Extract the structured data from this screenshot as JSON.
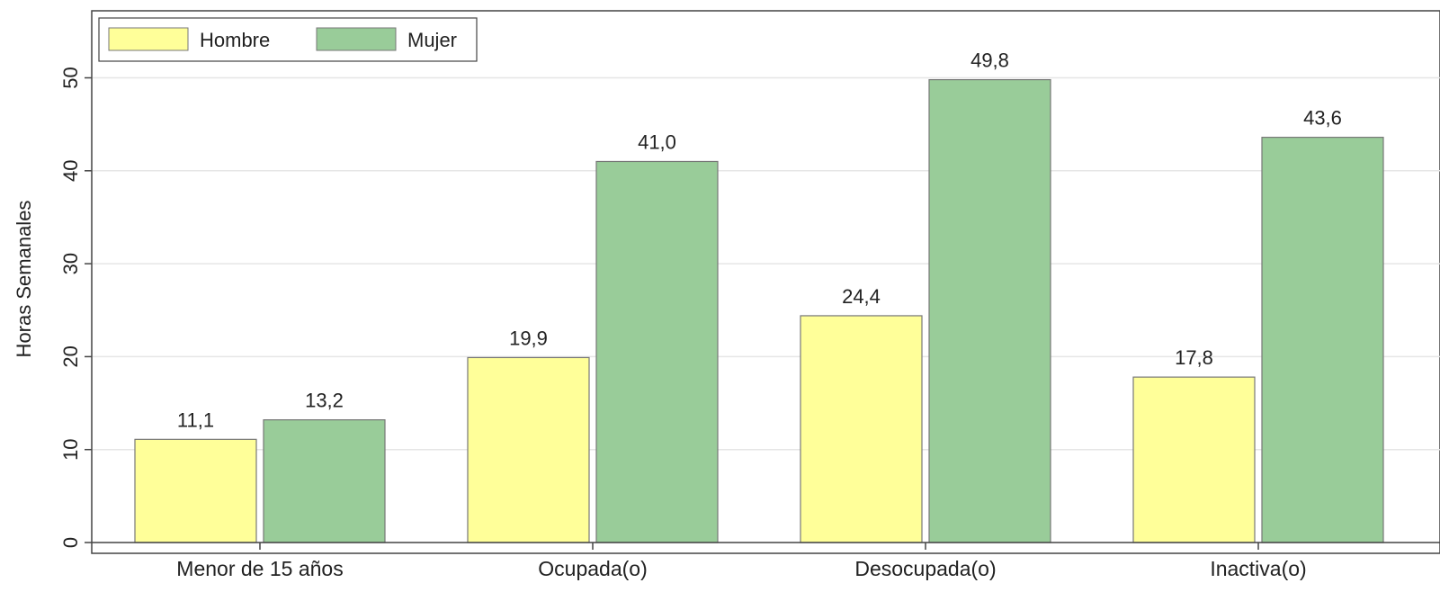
{
  "chart_data": {
    "type": "bar",
    "categories": [
      "Menor de 15 años",
      "Ocupada(o)",
      "Desocupada(o)",
      "Inactiva(o)"
    ],
    "series": [
      {
        "name": "Hombre",
        "values": [
          11.1,
          19.9,
          24.4,
          17.8
        ],
        "labels": [
          "11,1",
          "19,9",
          "24,4",
          "17,8"
        ],
        "color": "#ffff99"
      },
      {
        "name": "Mujer",
        "values": [
          13.2,
          41.0,
          49.8,
          43.6
        ],
        "labels": [
          "13,2",
          "41,0",
          "49,8",
          "43,6"
        ],
        "color": "#99cc99"
      }
    ],
    "ylabel": "Horas Semanales",
    "xlabel": "",
    "ylim": [
      0,
      57
    ],
    "yticks": [
      0,
      10,
      20,
      30,
      40,
      50
    ],
    "grid": true,
    "legend_position": "top-left"
  }
}
